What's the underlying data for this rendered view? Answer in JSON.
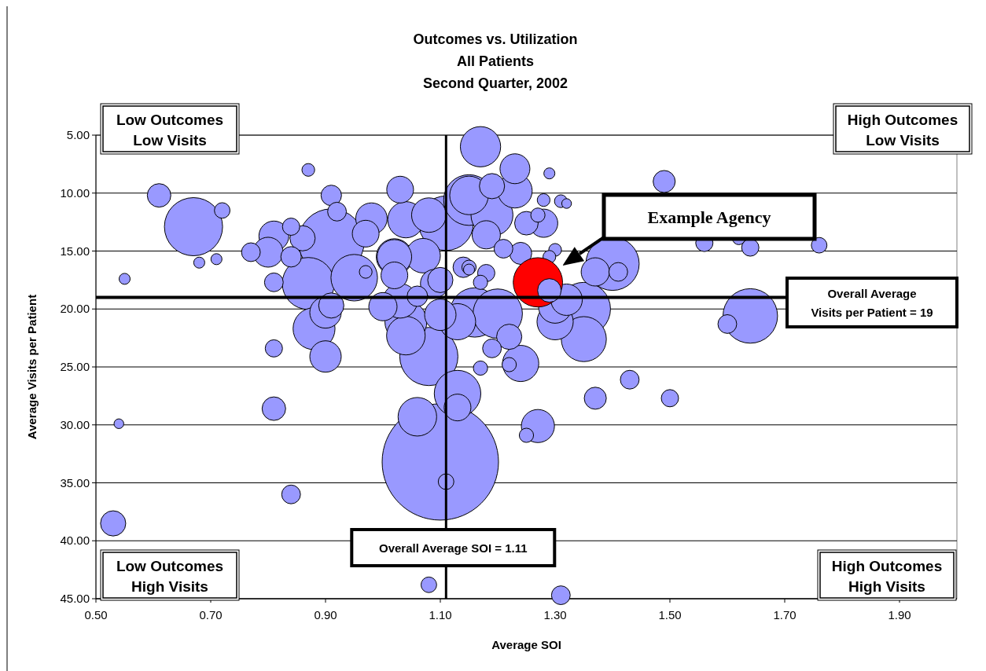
{
  "chart_data": {
    "type": "bubble",
    "title": "Outcomes vs. Utilization\nAll Patients\nSecond Quarter, 2002",
    "xlabel": "Average SOI",
    "ylabel": "Average Visits per Patient",
    "xlim": [
      0.5,
      2.0
    ],
    "xticks": [
      {
        "value": 0.5,
        "label": "0.50"
      },
      {
        "value": 0.7,
        "label": "0.70"
      },
      {
        "value": 0.9,
        "label": "0.90"
      },
      {
        "value": 1.1,
        "label": "1.10"
      },
      {
        "value": 1.3,
        "label": "1.30"
      },
      {
        "value": 1.5,
        "label": "1.50"
      },
      {
        "value": 1.7,
        "label": "1.70"
      },
      {
        "value": 1.9,
        "label": "1.90"
      }
    ],
    "ylim": [
      45,
      5
    ],
    "yticks": [
      {
        "value": 5,
        "label": "5.00"
      },
      {
        "value": 10,
        "label": "10.00"
      },
      {
        "value": 15,
        "label": "15.00"
      },
      {
        "value": 20,
        "label": "20.00"
      },
      {
        "value": 25,
        "label": "25.00"
      },
      {
        "value": 30,
        "label": "30.00"
      },
      {
        "value": 35,
        "label": "35.00"
      },
      {
        "value": 40,
        "label": "40.00"
      },
      {
        "value": 45,
        "label": "45.00"
      }
    ],
    "grid": "y",
    "series": [
      {
        "color": "#9999ff",
        "x": [
          1.1,
          0.91,
          0.67,
          1.08,
          1.11,
          1.35,
          1.4,
          1.64,
          0.87,
          1.15,
          1.16,
          1.2,
          0.95,
          1.13,
          1.35,
          1.19,
          0.88,
          1.04,
          1.17,
          1.06,
          1.04,
          1.15,
          1.13,
          1.3,
          1.24,
          1.02,
          1.04,
          1.07,
          1.02,
          1.08,
          1.23,
          1.3,
          1.27,
          1.32,
          0.9,
          0.98,
          1.1,
          0.9,
          0.61,
          0.81,
          0.8,
          1.23,
          1.03,
          1.0,
          1.09,
          1.18,
          1.28,
          1.37,
          0.97,
          1.02,
          1.03,
          1.13,
          0.86,
          1.19,
          1.1,
          0.91,
          1.22,
          0.81,
          1.41,
          0.91,
          0.92,
          1.14,
          0.84,
          1.24,
          0.84,
          0.77,
          0.81,
          1.37,
          1.19,
          1.21,
          1.06,
          1.43,
          1.6,
          1.5,
          0.81,
          0.84,
          1.56,
          1.64,
          1.31,
          1.18,
          1.25,
          1.49,
          0.72,
          1.76,
          1.15,
          1.17,
          0.97,
          0.87,
          1.28,
          1.31,
          1.3,
          1.29,
          1.62,
          1.22,
          1.17,
          1.25,
          1.27,
          1.11,
          1.08,
          1.15,
          0.68,
          0.71,
          0.55,
          0.54,
          1.32,
          1.29
        ],
        "values": [
          33.2,
          14.2,
          12.9,
          24.1,
          12.6,
          20.0,
          16.1,
          20.6,
          17.8,
          10.6,
          20.3,
          20.4,
          17.3,
          27.3,
          22.6,
          11.9,
          21.7,
          21.1,
          6.0,
          29.3,
          22.3,
          10.2,
          21.1,
          21.1,
          24.7,
          15.5,
          12.3,
          15.4,
          15.5,
          11.9,
          9.8,
          19.8,
          30.1,
          19.2,
          20.3,
          12.2,
          20.5,
          24.1,
          10.2,
          13.7,
          15.1,
          7.9,
          19.3,
          19.8,
          17.8,
          13.6,
          12.6,
          16.8,
          13.5,
          17.1,
          9.7,
          28.5,
          13.9,
          9.4,
          17.5,
          19.7,
          22.4,
          28.6,
          16.8,
          10.2,
          11.6,
          16.4,
          12.9,
          15.2,
          15.5,
          15.1,
          17.7,
          27.7,
          23.4,
          14.8,
          18.9,
          26.1,
          21.3,
          27.7,
          23.4,
          36.0,
          14.3,
          14.7,
          44.7,
          16.9,
          12.6,
          9.0,
          11.5,
          14.5,
          16.4,
          17.7,
          16.8,
          8.0,
          10.6,
          10.7,
          14.9,
          15.5,
          13.9,
          24.8,
          25.1,
          30.9,
          11.9,
          34.9,
          43.8,
          16.6,
          16.0,
          15.7,
          17.4,
          29.9,
          10.9,
          8.3
        ],
        "sizes": [
          1,
          0.32,
          0.25,
          0.25,
          0.22,
          0.21,
          0.21,
          0.22,
          0.2,
          0.19,
          0.18,
          0.18,
          0.16,
          0.16,
          0.15,
          0.13,
          0.13,
          0.13,
          0.12,
          0.11,
          0.11,
          0.11,
          0.097,
          0.097,
          0.097,
          0.097,
          0.097,
          0.088,
          0.088,
          0.088,
          0.088,
          0.081,
          0.081,
          0.073,
          0.073,
          0.073,
          0.073,
          0.073,
          0.041,
          0.066,
          0.066,
          0.066,
          0.088,
          0.059,
          0.059,
          0.059,
          0.059,
          0.059,
          0.053,
          0.053,
          0.053,
          0.053,
          0.047,
          0.047,
          0.047,
          0.047,
          0.047,
          0.041,
          0.026,
          0.031,
          0.026,
          0.031,
          0.022,
          0.036,
          0.031,
          0.026,
          0.026,
          0.036,
          0.026,
          0.026,
          0.031,
          0.026,
          0.026,
          0.022,
          0.022,
          0.026,
          0.022,
          0.022,
          0.026,
          0.022,
          0.041,
          0.036,
          0.018,
          0.018,
          0.015,
          0.015,
          0.012,
          0.012,
          0.012,
          0.012,
          0.012,
          0.012,
          0.012,
          0.015,
          0.015,
          0.015,
          0.015,
          0.018,
          0.018,
          0.009,
          0.009,
          0.009,
          0.009,
          0.007,
          0.007,
          0.009
        ]
      },
      {
        "color": "#ff0000",
        "x": [
          1.27
        ],
        "values": [
          17.7
        ],
        "sizes": [
          0.18
        ]
      },
      {
        "color": "#9999ff",
        "x": [
          1.29,
          0.53
        ],
        "values": [
          18.4,
          38.5
        ],
        "sizes": [
          0.041,
          0.047
        ]
      }
    ],
    "ref_lines": [
      {
        "axis": "x",
        "value": 1.11,
        "label": "Overall Average SOI = 1.11"
      },
      {
        "axis": "y",
        "value": 19,
        "label": "Overall Average\nVisits per Patient = 19"
      }
    ],
    "annotations": [
      "Example Agency",
      "Low Outcomes\nLow Visits",
      "High Outcomes\nLow Visits",
      "Low Outcomes\nHigh Visits",
      "High Outcomes\nHigh Visits"
    ]
  }
}
